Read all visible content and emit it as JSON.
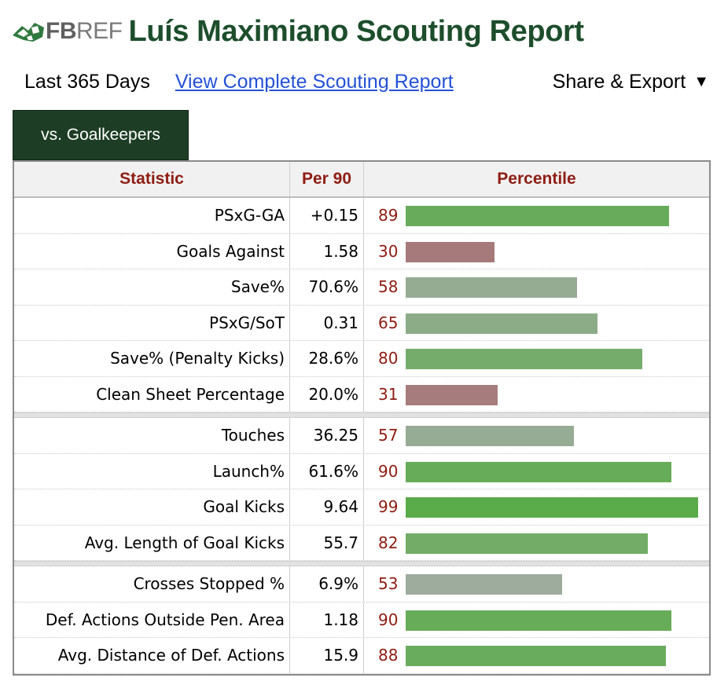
{
  "header": {
    "logo": {
      "brand_bold": "FB",
      "brand_light": "REF",
      "mark_icon": "fbref-logo-icon"
    },
    "title": "Luís Maximiano Scouting Report"
  },
  "subnav": {
    "period": "Last 365 Days",
    "report_link": "View Complete Scouting Report",
    "share_label": "Share & Export",
    "share_caret": "▼"
  },
  "tab": {
    "label": "vs. Goalkeepers"
  },
  "table": {
    "headers": {
      "statistic": "Statistic",
      "per90": "Per 90",
      "percentile": "Percentile"
    },
    "groups": [
      [
        {
          "stat": "PSxG-GA",
          "per90": "+0.15",
          "percentile": 89
        },
        {
          "stat": "Goals Against",
          "per90": "1.58",
          "percentile": 30
        },
        {
          "stat": "Save%",
          "per90": "70.6%",
          "percentile": 58
        },
        {
          "stat": "PSxG/SoT",
          "per90": "0.31",
          "percentile": 65
        },
        {
          "stat": "Save% (Penalty Kicks)",
          "per90": "28.6%",
          "percentile": 80
        },
        {
          "stat": "Clean Sheet Percentage",
          "per90": "20.0%",
          "percentile": 31
        }
      ],
      [
        {
          "stat": "Touches",
          "per90": "36.25",
          "percentile": 57
        },
        {
          "stat": "Launch%",
          "per90": "61.6%",
          "percentile": 90
        },
        {
          "stat": "Goal Kicks",
          "per90": "9.64",
          "percentile": 99
        },
        {
          "stat": "Avg. Length of Goal Kicks",
          "per90": "55.7",
          "percentile": 82
        }
      ],
      [
        {
          "stat": "Crosses Stopped %",
          "per90": "6.9%",
          "percentile": 53
        },
        {
          "stat": "Def. Actions Outside Pen. Area",
          "per90": "1.18",
          "percentile": 90
        },
        {
          "stat": "Avg. Distance of Def. Actions",
          "per90": "15.9",
          "percentile": 88
        }
      ]
    ]
  },
  "colors": {
    "title_green": "#1d4e2c",
    "tab_bg": "#1d3e25",
    "header_red": "#8e1d13",
    "link_blue": "#2451d6",
    "bar_scale": {
      "low": "#a67a7a",
      "mid": "#a1aca1",
      "high": "#58ac47"
    }
  }
}
